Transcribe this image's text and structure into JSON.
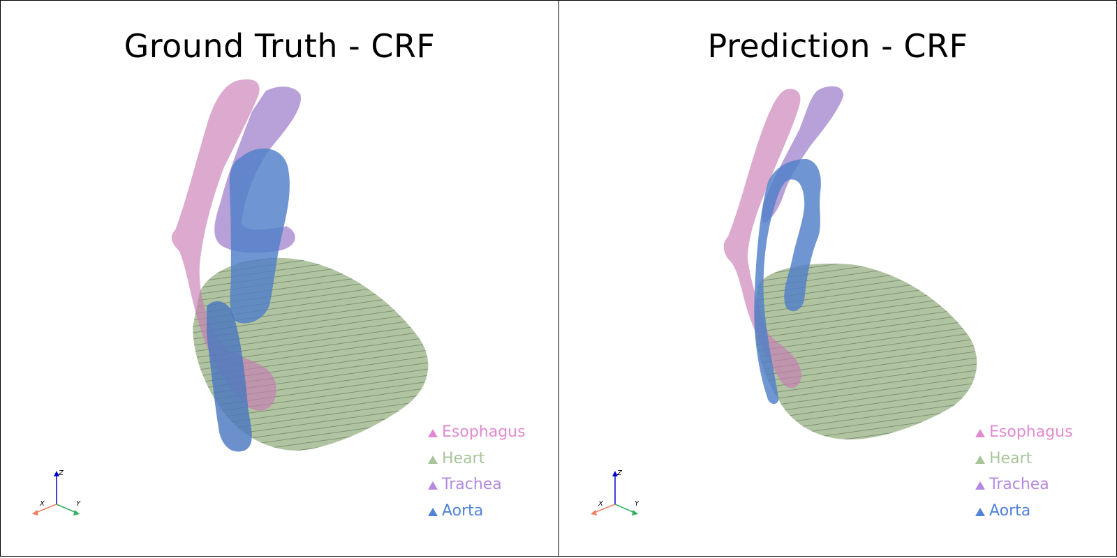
{
  "panels": [
    {
      "title": "Ground Truth - CRF",
      "legend": [
        {
          "label": "Esophagus",
          "color": "#e08ad0"
        },
        {
          "label": "Heart",
          "color": "#a8c49a"
        },
        {
          "label": "Trachea",
          "color": "#b48ae0"
        },
        {
          "label": "Aorta",
          "color": "#4f82d8"
        }
      ],
      "axes": {
        "x": "X",
        "y": "Y",
        "z": "Z"
      }
    },
    {
      "title": "Prediction - CRF",
      "legend": [
        {
          "label": "Esophagus",
          "color": "#e08ad0"
        },
        {
          "label": "Heart",
          "color": "#a8c49a"
        },
        {
          "label": "Trachea",
          "color": "#b48ae0"
        },
        {
          "label": "Aorta",
          "color": "#4f82d8"
        }
      ],
      "axes": {
        "x": "X",
        "y": "Y",
        "z": "Z"
      }
    }
  ]
}
